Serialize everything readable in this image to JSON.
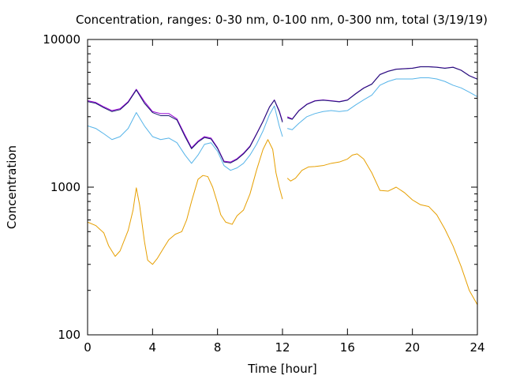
{
  "chart_data": {
    "type": "line",
    "title": "Concentration, ranges: 0-30 nm, 0-100 nm, 0-300 nm, total (3/19/19)",
    "xlabel": "Time [hour]",
    "ylabel": "Concentration",
    "xlim": [
      0,
      24
    ],
    "ylim": [
      100,
      10000
    ],
    "y_scale": "log",
    "grid": false,
    "legend": "none",
    "x_ticks": [
      0,
      4,
      8,
      12,
      16,
      20,
      24
    ],
    "x_tick_labels": [
      "0",
      "4",
      "8",
      "12",
      "16",
      "20",
      "24"
    ],
    "y_ticks": [
      100,
      1000,
      10000
    ],
    "y_tick_labels": [
      "100",
      "1000",
      "10000"
    ],
    "series": [
      {
        "color": "#e69f00",
        "x": [
          0,
          0.5,
          1,
          1.3,
          1.7,
          2,
          2.5,
          2.8,
          3.0,
          3.2,
          3.5,
          3.7,
          4.0,
          4.3,
          4.7,
          5,
          5.4,
          5.8,
          6.1,
          6.4,
          6.8,
          7.1,
          7.4,
          7.7,
          8.0,
          8.2,
          8.5,
          8.9,
          9.2,
          9.6,
          10,
          10.4,
          10.8,
          11.1,
          11.4,
          11.6,
          11.8,
          12.0,
          null,
          12.3,
          12.5,
          12.8,
          13.2,
          13.6,
          14.0,
          14.5,
          15.0,
          15.5,
          16.0,
          16.3,
          16.6,
          17.0,
          17.5,
          18.0,
          18.5,
          19.0,
          19.5,
          20.0,
          20.5,
          21.0,
          21.5,
          22.0,
          22.5,
          23.0,
          23.5,
          24.0
        ],
        "y": [
          580,
          550,
          490,
          400,
          340,
          370,
          510,
          700,
          990,
          760,
          430,
          320,
          300,
          330,
          390,
          440,
          480,
          500,
          600,
          800,
          1130,
          1200,
          1180,
          1000,
          780,
          650,
          580,
          560,
          640,
          700,
          900,
          1300,
          1800,
          2100,
          1800,
          1250,
          1000,
          830,
          null,
          1150,
          1100,
          1150,
          1300,
          1370,
          1380,
          1400,
          1450,
          1480,
          1550,
          1650,
          1680,
          1550,
          1250,
          950,
          940,
          1000,
          920,
          820,
          760,
          740,
          650,
          520,
          400,
          290,
          200,
          160
        ]
      },
      {
        "color": "#56b4e9",
        "x": [
          0,
          0.5,
          1,
          1.5,
          2,
          2.5,
          3.0,
          3.5,
          4.0,
          4.5,
          5.0,
          5.5,
          6.0,
          6.4,
          6.8,
          7.2,
          7.6,
          8.0,
          8.4,
          8.8,
          9.2,
          9.6,
          10,
          10.4,
          10.8,
          11.2,
          11.5,
          11.8,
          12.0,
          null,
          12.3,
          12.6,
          13,
          13.5,
          14,
          14.5,
          15,
          15.5,
          16,
          16.5,
          17,
          17.5,
          18,
          18.5,
          19,
          19.5,
          20,
          20.5,
          21,
          21.5,
          22,
          22.5,
          23,
          23.5,
          24
        ],
        "y": [
          2600,
          2500,
          2300,
          2100,
          2200,
          2500,
          3200,
          2600,
          2200,
          2100,
          2150,
          2000,
          1650,
          1450,
          1650,
          1950,
          2000,
          1750,
          1400,
          1300,
          1350,
          1450,
          1650,
          1950,
          2400,
          3100,
          3550,
          2600,
          2200,
          null,
          2500,
          2450,
          2700,
          3000,
          3150,
          3250,
          3300,
          3250,
          3300,
          3600,
          3900,
          4200,
          4900,
          5200,
          5400,
          5400,
          5400,
          5500,
          5500,
          5400,
          5200,
          4900,
          4700,
          4400,
          4100
        ]
      },
      {
        "color": "#9400d3",
        "x": [
          0,
          0.5,
          1,
          1.5,
          2,
          2.5,
          3.0,
          3.5,
          4.0,
          4.5,
          5.0,
          5.5,
          6.0,
          6.4,
          6.8,
          7.2,
          7.6,
          8.0,
          8.4,
          8.8,
          9.2,
          9.6,
          10,
          10.4,
          10.8,
          11.2,
          11.5,
          11.8,
          12.0,
          null,
          12.3,
          12.6,
          13,
          13.5,
          14,
          14.5,
          15,
          15.5,
          16,
          16.5,
          17,
          17.5,
          18,
          18.5,
          19,
          19.5,
          20,
          20.5,
          21,
          21.5,
          22,
          22.5,
          23,
          23.5,
          24
        ],
        "y": [
          3850,
          3750,
          3500,
          3300,
          3400,
          3800,
          4600,
          3800,
          3250,
          3150,
          3150,
          2900,
          2250,
          1850,
          2050,
          2200,
          2150,
          1850,
          1500,
          1480,
          1560,
          1700,
          1900,
          2300,
          2800,
          3500,
          3900,
          3300,
          2800,
          null,
          3000,
          2900,
          3300,
          3650,
          3850,
          3900,
          3850,
          3800,
          3900,
          4300,
          4700,
          5000,
          5800,
          6100,
          6300,
          6350,
          6400,
          6550,
          6550,
          6500,
          6400,
          6500,
          6200,
          5700,
          5400
        ]
      },
      {
        "color": "#191970",
        "x": [
          0,
          0.5,
          1,
          1.5,
          2,
          2.5,
          3.0,
          3.5,
          4.0,
          4.5,
          5.0,
          5.5,
          6.0,
          6.4,
          6.8,
          7.2,
          7.6,
          8.0,
          8.4,
          8.8,
          9.2,
          9.6,
          10,
          10.4,
          10.8,
          11.2,
          11.5,
          11.8,
          12.0,
          null,
          12.3,
          12.6,
          13,
          13.5,
          14,
          14.5,
          15,
          15.5,
          16,
          16.5,
          17,
          17.5,
          18,
          18.5,
          19,
          19.5,
          20,
          20.5,
          21,
          21.5,
          22,
          22.5,
          23,
          23.5,
          24
        ],
        "y": [
          3800,
          3700,
          3450,
          3250,
          3350,
          3750,
          4550,
          3700,
          3200,
          3050,
          3050,
          2850,
          2200,
          1820,
          2020,
          2170,
          2120,
          1830,
          1480,
          1460,
          1540,
          1680,
          1880,
          2280,
          2780,
          3480,
          3880,
          3250,
          2750,
          null,
          2950,
          2880,
          3280,
          3630,
          3830,
          3880,
          3830,
          3780,
          3880,
          4280,
          4680,
          4980,
          5780,
          6080,
          6280,
          6330,
          6380,
          6530,
          6530,
          6480,
          6380,
          6480,
          6180,
          5680,
          5380
        ]
      }
    ]
  }
}
